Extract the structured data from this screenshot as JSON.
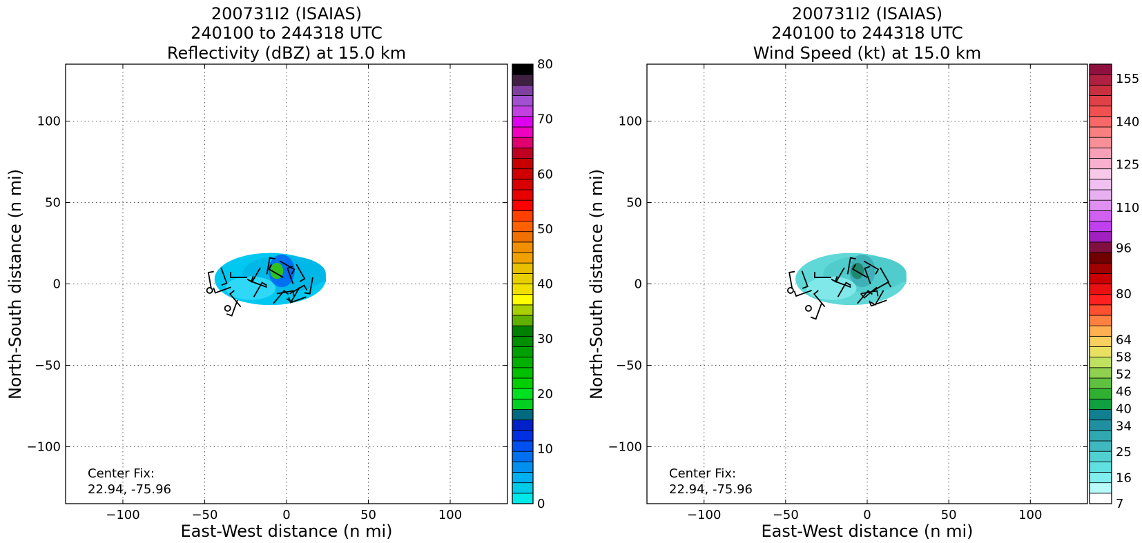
{
  "chart_data": [
    {
      "type": "heatmap",
      "title": [
        "200731I2 (ISAIAS)",
        "240100 to 244318 UTC",
        "Reflectivity (dBZ) at 15.0 km"
      ],
      "xlabel": "East-West distance (n mi)",
      "ylabel": "North-South distance (n mi)",
      "xlim": [
        -135,
        135
      ],
      "ylim": [
        -135,
        135
      ],
      "xticks": [
        -100,
        -50,
        0,
        50,
        100
      ],
      "yticks": [
        -100,
        -50,
        0,
        50,
        100
      ],
      "xtick_labels": [
        "−100",
        "−50",
        "0",
        "50",
        "100"
      ],
      "ytick_labels": [
        "−100",
        "−50",
        "0",
        "50",
        "100"
      ],
      "grid": true,
      "annotation": [
        "Center Fix:",
        "22.94, -75.96"
      ],
      "colorbar": {
        "min": 0,
        "max": 80,
        "ticks": [
          "0",
          "10",
          "20",
          "30",
          "40",
          "50",
          "60",
          "70",
          "80"
        ],
        "colors": [
          "#00e8e8",
          "#00cce8",
          "#00b0f0",
          "#0090f0",
          "#0070f0",
          "#0050f0",
          "#0030e0",
          "#0020c8",
          "#006a80",
          "#00d020",
          "#00e020",
          "#00d000",
          "#00c000",
          "#00b000",
          "#00a000",
          "#008f00",
          "#008000",
          "#60b000",
          "#a8d000",
          "#ffff00",
          "#f0e000",
          "#e8d000",
          "#e8c000",
          "#f0a000",
          "#f09000",
          "#f07000",
          "#ff6000",
          "#ff4000",
          "#ff0000",
          "#e80000",
          "#d80000",
          "#d00000",
          "#c80000",
          "#c00020",
          "#e00070",
          "#f000c0",
          "#e000f0",
          "#c040e0",
          "#a050d0",
          "#8040a0",
          "#402040",
          "#000000"
        ]
      },
      "echo_region": {
        "center": [
          -10,
          3
        ],
        "rx": 34,
        "ry": 16,
        "colors": [
          "#00c8f0",
          "#00b8e8",
          "#30d8f8",
          "#0070f0",
          "#30c020"
        ]
      },
      "circles": [
        [
          -47,
          -4
        ],
        [
          -36,
          -15
        ]
      ],
      "barbs": [
        [
          -46,
          -3,
          350
        ],
        [
          -40,
          10,
          160
        ],
        [
          -34,
          -2,
          250
        ],
        [
          -30,
          -10,
          200
        ],
        [
          -24,
          4,
          270
        ],
        [
          -20,
          -8,
          30
        ],
        [
          -16,
          10,
          210
        ],
        [
          -12,
          -2,
          290
        ],
        [
          -8,
          -12,
          40
        ],
        [
          -4,
          14,
          120
        ],
        [
          -2,
          4,
          300
        ],
        [
          2,
          -6,
          60
        ],
        [
          6,
          12,
          150
        ],
        [
          8,
          -2,
          210
        ],
        [
          12,
          -8,
          250
        ],
        [
          16,
          4,
          190
        ],
        [
          -28,
          -14,
          320
        ],
        [
          -12,
          6,
          10
        ],
        [
          4,
          0,
          340
        ],
        [
          -6,
          -6,
          80
        ]
      ]
    },
    {
      "type": "heatmap",
      "title": [
        "200731I2 (ISAIAS)",
        "240100 to 244318 UTC",
        "Wind Speed (kt) at 15.0 km"
      ],
      "xlabel": "East-West distance (n mi)",
      "ylabel": "North-South distance (n mi)",
      "xlim": [
        -135,
        135
      ],
      "ylim": [
        -135,
        135
      ],
      "xticks": [
        -100,
        -50,
        0,
        50,
        100
      ],
      "yticks": [
        -100,
        -50,
        0,
        50,
        100
      ],
      "xtick_labels": [
        "−100",
        "−50",
        "0",
        "50",
        "100"
      ],
      "ytick_labels": [
        "−100",
        "−50",
        "0",
        "50",
        "100"
      ],
      "grid": true,
      "annotation": [
        "Center Fix:",
        "22.94, -75.96"
      ],
      "colorbar": {
        "min": 7,
        "max": 160,
        "ticks": [
          "7",
          "16",
          "25",
          "34",
          "40",
          "46",
          "52",
          "58",
          "64",
          "80",
          "96",
          "110",
          "125",
          "140",
          "155"
        ],
        "tick_positions": [
          7,
          16,
          25,
          34,
          40,
          46,
          52,
          58,
          64,
          80,
          96,
          110,
          125,
          140,
          155
        ],
        "colors": [
          "#ffffff",
          "#b8fbfb",
          "#80eeee",
          "#60e0e0",
          "#50d0d0",
          "#40b8c0",
          "#30a8b0",
          "#2090a0",
          "#108090",
          "#10a040",
          "#30b030",
          "#60c040",
          "#90d050",
          "#c0e060",
          "#e8e060",
          "#f8d060",
          "#ffb050",
          "#ff8040",
          "#ff5030",
          "#ff2020",
          "#e81010",
          "#c80000",
          "#a00000",
          "#700000",
          "#801040",
          "#a020c0",
          "#c040f0",
          "#d060f0",
          "#e090f0",
          "#e8b0f0",
          "#f0c0f0",
          "#f8c8e8",
          "#f8b0d0",
          "#f8a0b8",
          "#f89098",
          "#f88080",
          "#f86868",
          "#f05050",
          "#e04048",
          "#c83040",
          "#b02040",
          "#901040"
        ]
      },
      "echo_region": {
        "center": [
          -10,
          3
        ],
        "rx": 34,
        "ry": 16,
        "colors": [
          "#60d8d8",
          "#50cccc",
          "#80e8e8",
          "#40b0b8",
          "#208870"
        ]
      },
      "circles": [
        [
          -47,
          -4
        ],
        [
          -36,
          -15
        ]
      ],
      "barbs": [
        [
          -46,
          -3,
          350
        ],
        [
          -40,
          8,
          160
        ],
        [
          -34,
          -4,
          250
        ],
        [
          -28,
          -12,
          200
        ],
        [
          -22,
          4,
          270
        ],
        [
          -18,
          -8,
          30
        ],
        [
          -14,
          10,
          210
        ],
        [
          -10,
          -2,
          290
        ],
        [
          -6,
          -12,
          40
        ],
        [
          -2,
          14,
          120
        ],
        [
          0,
          4,
          300
        ],
        [
          4,
          -4,
          60
        ],
        [
          8,
          10,
          150
        ],
        [
          10,
          -4,
          210
        ],
        [
          12,
          -10,
          250
        ],
        [
          -26,
          -14,
          320
        ],
        [
          -12,
          6,
          10
        ],
        [
          2,
          0,
          340
        ],
        [
          -4,
          -6,
          80
        ],
        [
          6,
          -2,
          230
        ]
      ]
    }
  ]
}
